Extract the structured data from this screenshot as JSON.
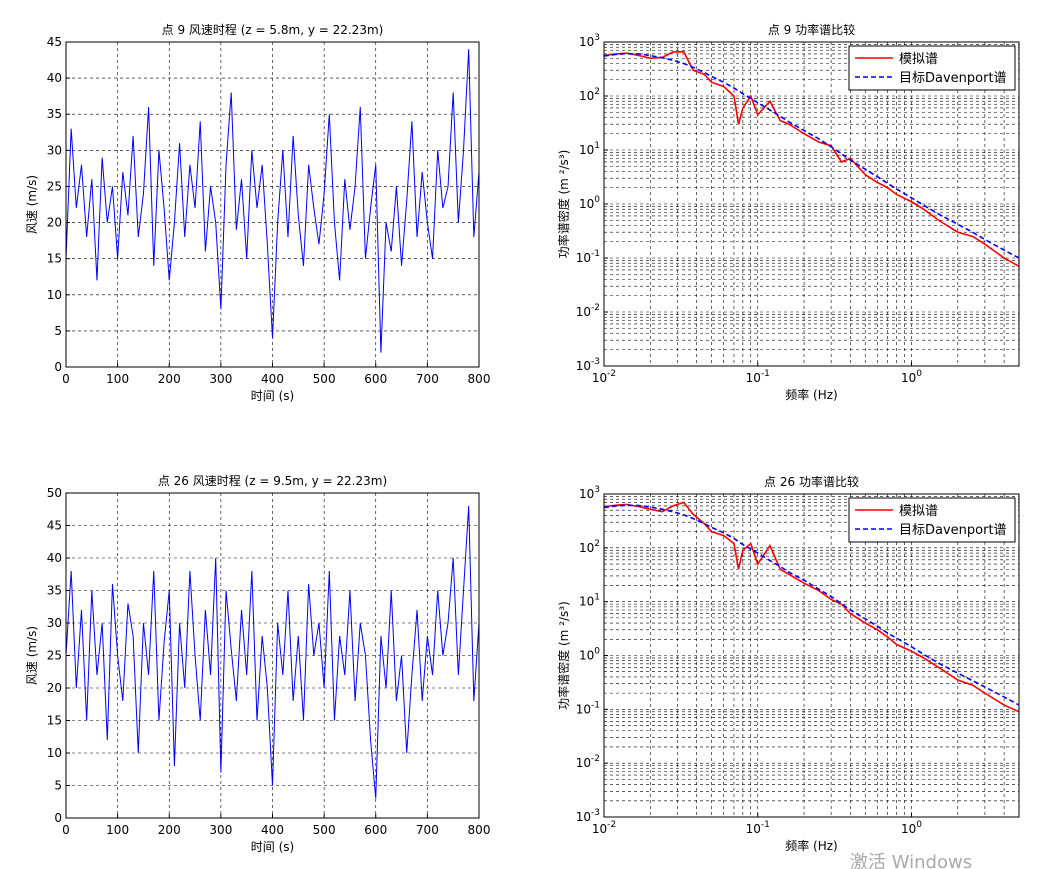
{
  "chart_data": [
    {
      "type": "line",
      "title": "点 9 风速时程 (z = 5.8m, y = 22.23m)",
      "x_label": "时间 (s)",
      "y_label": "风速 (m/s)",
      "x": [
        0,
        10,
        20,
        30,
        40,
        50,
        60,
        70,
        80,
        90,
        100,
        110,
        120,
        130,
        140,
        150,
        160,
        170,
        180,
        190,
        200,
        210,
        220,
        230,
        240,
        250,
        260,
        270,
        280,
        290,
        300,
        310,
        320,
        330,
        340,
        350,
        360,
        370,
        380,
        390,
        400,
        410,
        420,
        430,
        440,
        450,
        460,
        470,
        480,
        490,
        500,
        510,
        520,
        530,
        540,
        550,
        560,
        570,
        580,
        590,
        600,
        610,
        620,
        630,
        640,
        650,
        660,
        670,
        680,
        690,
        700,
        710,
        720,
        730,
        740,
        750,
        760,
        770,
        780,
        790,
        800
      ],
      "series": [
        {
          "name": "风速",
          "color": "#0000ff",
          "values": [
            15,
            33,
            22,
            28,
            18,
            26,
            12,
            29,
            20,
            25,
            15,
            27,
            21,
            32,
            18,
            24,
            36,
            14,
            30,
            22,
            12,
            20,
            31,
            18,
            28,
            22,
            34,
            16,
            25,
            20,
            8,
            28,
            38,
            19,
            26,
            15,
            30,
            22,
            28,
            17,
            4,
            20,
            30,
            18,
            32,
            21,
            14,
            28,
            22,
            17,
            24,
            35,
            20,
            12,
            26,
            19,
            25,
            36,
            15,
            22,
            28,
            2,
            20,
            16,
            25,
            14,
            23,
            34,
            18,
            27,
            20,
            15,
            30,
            22,
            25,
            38,
            20,
            30,
            44,
            18,
            27
          ]
        }
      ],
      "xlim": [
        0,
        800
      ],
      "xticks": [
        0,
        100,
        200,
        300,
        400,
        500,
        600,
        700,
        800
      ],
      "ylim": [
        0,
        45
      ],
      "yticks": [
        0,
        5,
        10,
        15,
        20,
        25,
        30,
        35,
        40,
        45
      ],
      "grid": true
    },
    {
      "type": "line",
      "title": "点 9 功率谱比较",
      "x_label": "频率 (Hz)",
      "y_label": "功率谱密度 (m ²/s³)",
      "xscale": "log",
      "yscale": "log",
      "legend": "upper right",
      "minor_grid": true,
      "x": [
        0.01,
        0.012,
        0.014,
        0.017,
        0.02,
        0.024,
        0.028,
        0.033,
        0.038,
        0.045,
        0.05,
        0.06,
        0.07,
        0.075,
        0.08,
        0.09,
        0.1,
        0.12,
        0.14,
        0.16,
        0.2,
        0.25,
        0.3,
        0.35,
        0.4,
        0.5,
        0.6,
        0.7,
        0.8,
        1,
        1.2,
        1.5,
        2,
        2.5,
        3,
        4,
        5
      ],
      "series": [
        {
          "name": "模拟谱",
          "color": "#ff0000",
          "linestyle": "solid",
          "values": [
            560,
            600,
            620,
            560,
            500,
            520,
            650,
            660,
            300,
            250,
            180,
            150,
            100,
            30,
            60,
            100,
            45,
            80,
            35,
            30,
            20,
            14,
            12,
            6,
            7,
            3.5,
            2.5,
            2,
            1.5,
            1.1,
            0.8,
            0.5,
            0.3,
            0.25,
            0.18,
            0.1,
            0.07
          ]
        },
        {
          "name": "目标Davenport谱",
          "color": "#0000ff",
          "linestyle": "dashed",
          "values": [
            550,
            590,
            610,
            600,
            560,
            510,
            460,
            400,
            340,
            270,
            230,
            180,
            140,
            125,
            110,
            90,
            75,
            55,
            42,
            33,
            23,
            16,
            11.5,
            8.5,
            6.5,
            4.4,
            3.2,
            2.4,
            1.9,
            1.3,
            0.95,
            0.65,
            0.42,
            0.3,
            0.22,
            0.14,
            0.1
          ]
        }
      ],
      "xlim": [
        0.01,
        5
      ],
      "xticks": [
        {
          "value": 0.01,
          "label": "10",
          "exponent": "-2"
        },
        {
          "value": 0.1,
          "label": "10",
          "exponent": "-1"
        },
        {
          "value": 1,
          "label": "10",
          "exponent": "0"
        }
      ],
      "ylim": [
        0.001,
        1000
      ],
      "yticks": [
        {
          "value": 0.001,
          "label": "10",
          "exponent": "-3"
        },
        {
          "value": 0.01,
          "label": "10",
          "exponent": "-2"
        },
        {
          "value": 0.1,
          "label": "10",
          "exponent": "-1"
        },
        {
          "value": 1,
          "label": "10",
          "exponent": "0"
        },
        {
          "value": 10,
          "label": "10",
          "exponent": "1"
        },
        {
          "value": 100,
          "label": "10",
          "exponent": "2"
        },
        {
          "value": 1000,
          "label": "10",
          "exponent": "3"
        }
      ],
      "grid": true
    },
    {
      "type": "line",
      "title": "点 26 风速时程 (z = 9.5m, y = 22.23m)",
      "x_label": "时间 (s)",
      "y_label": "风速 (m/s)",
      "x": [
        0,
        10,
        20,
        30,
        40,
        50,
        60,
        70,
        80,
        90,
        100,
        110,
        120,
        130,
        140,
        150,
        160,
        170,
        180,
        190,
        200,
        210,
        220,
        230,
        240,
        250,
        260,
        270,
        280,
        290,
        300,
        310,
        320,
        330,
        340,
        350,
        360,
        370,
        380,
        390,
        400,
        410,
        420,
        430,
        440,
        450,
        460,
        470,
        480,
        490,
        500,
        510,
        520,
        530,
        540,
        550,
        560,
        570,
        580,
        590,
        600,
        610,
        620,
        630,
        640,
        650,
        660,
        670,
        680,
        690,
        700,
        710,
        720,
        730,
        740,
        750,
        760,
        770,
        780,
        790,
        800
      ],
      "series": [
        {
          "name": "风速",
          "color": "#0000ff",
          "values": [
            25,
            38,
            20,
            32,
            15,
            35,
            22,
            30,
            12,
            36,
            25,
            18,
            33,
            28,
            10,
            30,
            22,
            38,
            15,
            27,
            35,
            8,
            30,
            20,
            38,
            25,
            15,
            32,
            22,
            40,
            7,
            35,
            26,
            18,
            32,
            22,
            38,
            15,
            28,
            20,
            5,
            30,
            22,
            35,
            18,
            28,
            15,
            36,
            25,
            30,
            20,
            38,
            15,
            28,
            22,
            35,
            18,
            30,
            25,
            12,
            3,
            28,
            20,
            35,
            18,
            25,
            10,
            22,
            32,
            18,
            28,
            22,
            35,
            25,
            30,
            40,
            22,
            35,
            48,
            18,
            30
          ]
        }
      ],
      "xlim": [
        0,
        800
      ],
      "xticks": [
        0,
        100,
        200,
        300,
        400,
        500,
        600,
        700,
        800
      ],
      "ylim": [
        0,
        50
      ],
      "yticks": [
        0,
        5,
        10,
        15,
        20,
        25,
        30,
        35,
        40,
        45,
        50
      ],
      "grid": true
    },
    {
      "type": "line",
      "title": "点 26 功率谱比较",
      "x_label": "频率 (Hz)",
      "y_label": "功率谱密度 (m ²/s³)",
      "xscale": "log",
      "yscale": "log",
      "legend": "upper right",
      "minor_grid": true,
      "x": [
        0.01,
        0.012,
        0.014,
        0.017,
        0.02,
        0.024,
        0.028,
        0.033,
        0.038,
        0.045,
        0.05,
        0.06,
        0.07,
        0.075,
        0.08,
        0.09,
        0.1,
        0.12,
        0.14,
        0.16,
        0.2,
        0.25,
        0.3,
        0.35,
        0.4,
        0.5,
        0.6,
        0.7,
        0.8,
        1,
        1.2,
        1.5,
        2,
        2.5,
        3,
        4,
        5
      ],
      "series": [
        {
          "name": "模拟谱",
          "color": "#ff0000",
          "linestyle": "solid",
          "values": [
            580,
            620,
            640,
            580,
            520,
            470,
            600,
            700,
            420,
            280,
            200,
            170,
            120,
            40,
            90,
            120,
            50,
            110,
            40,
            32,
            22,
            16,
            11,
            9,
            6,
            4,
            3,
            2.2,
            1.6,
            1.2,
            0.9,
            0.6,
            0.35,
            0.28,
            0.2,
            0.12,
            0.09
          ]
        },
        {
          "name": "目标Davenport谱",
          "color": "#0000ff",
          "linestyle": "dashed",
          "values": [
            560,
            600,
            620,
            610,
            570,
            520,
            470,
            410,
            350,
            280,
            240,
            190,
            150,
            130,
            115,
            95,
            80,
            58,
            45,
            35,
            25,
            17,
            12.5,
            9.2,
            7,
            4.8,
            3.5,
            2.6,
            2.1,
            1.45,
            1.05,
            0.72,
            0.47,
            0.34,
            0.26,
            0.17,
            0.12
          ]
        }
      ],
      "xlim": [
        0.01,
        5
      ],
      "xticks": [
        {
          "value": 0.01,
          "label": "10",
          "exponent": "-2"
        },
        {
          "value": 0.1,
          "label": "10",
          "exponent": "-1"
        },
        {
          "value": 1,
          "label": "10",
          "exponent": "0"
        }
      ],
      "ylim": [
        0.001,
        1000
      ],
      "yticks": [
        {
          "value": 0.001,
          "label": "10",
          "exponent": "-3"
        },
        {
          "value": 0.01,
          "label": "10",
          "exponent": "-2"
        },
        {
          "value": 0.1,
          "label": "10",
          "exponent": "-1"
        },
        {
          "value": 1,
          "label": "10",
          "exponent": "0"
        },
        {
          "value": 10,
          "label": "10",
          "exponent": "1"
        },
        {
          "value": 100,
          "label": "10",
          "exponent": "2"
        },
        {
          "value": 1000,
          "label": "10",
          "exponent": "3"
        }
      ],
      "grid": true
    }
  ],
  "watermark": "激活 Windows"
}
